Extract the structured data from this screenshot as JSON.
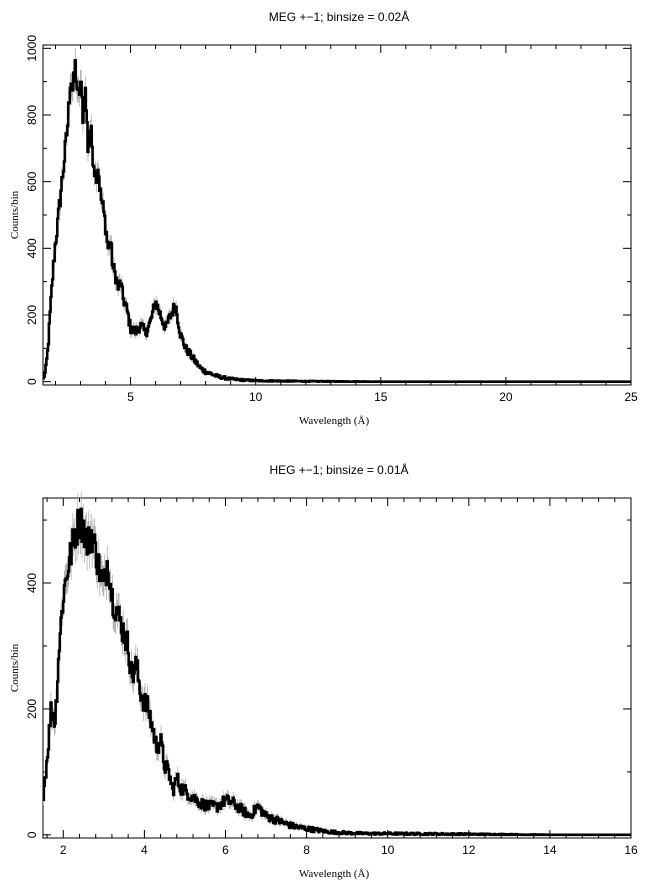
{
  "chart_data": [
    {
      "type": "line",
      "title": "MEG +−1; binsize = 0.02Å",
      "xlabel": "Wavelength (Å)",
      "ylabel": "Counts/bin",
      "xlim": [
        1.5,
        25
      ],
      "ylim": [
        -10,
        1010
      ],
      "xticks": [
        5,
        10,
        15,
        20,
        25
      ],
      "yticks": [
        0,
        200,
        400,
        600,
        800,
        1000
      ],
      "grid": false,
      "series": [
        {
          "x": [
            1.5,
            1.6,
            1.7,
            1.8,
            1.9,
            2.0,
            2.1,
            2.2,
            2.3,
            2.4,
            2.5,
            2.6,
            2.7,
            2.8,
            2.9,
            3.0,
            3.1,
            3.2,
            3.3,
            3.4,
            3.5,
            3.6,
            3.7,
            3.8,
            3.9,
            4.0,
            4.1,
            4.2,
            4.3,
            4.4,
            4.5,
            4.6,
            4.7,
            4.8,
            4.9,
            5.0,
            5.2,
            5.4,
            5.6,
            5.8,
            6.0,
            6.2,
            6.4,
            6.6,
            6.8,
            7.0,
            7.2,
            7.4,
            7.6,
            7.8,
            8.0,
            8.5,
            9.0,
            9.5,
            10.0,
            11.0,
            12.0,
            15.0,
            20.0,
            25.0
          ],
          "values": [
            5,
            30,
            100,
            220,
            330,
            420,
            480,
            560,
            630,
            700,
            780,
            920,
            870,
            950,
            840,
            900,
            800,
            870,
            700,
            760,
            680,
            620,
            650,
            560,
            520,
            470,
            400,
            420,
            340,
            320,
            280,
            300,
            250,
            230,
            200,
            160,
            150,
            170,
            145,
            180,
            240,
            200,
            160,
            200,
            230,
            140,
            100,
            80,
            60,
            40,
            30,
            15,
            8,
            5,
            3,
            2,
            1,
            0,
            0,
            0
          ]
        }
      ]
    },
    {
      "type": "line",
      "title": "HEG +−1; binsize = 0.01Å",
      "xlabel": "Wavelength (Å)",
      "ylabel": "Counts/bin",
      "xlim": [
        1.5,
        16
      ],
      "ylim": [
        -5,
        535
      ],
      "xticks": [
        2,
        4,
        6,
        8,
        10,
        12,
        14,
        16
      ],
      "yticks": [
        0,
        200,
        400
      ],
      "grid": false,
      "series": [
        {
          "x": [
            1.5,
            1.6,
            1.7,
            1.8,
            1.9,
            2.0,
            2.1,
            2.2,
            2.3,
            2.4,
            2.5,
            2.6,
            2.7,
            2.8,
            2.9,
            3.0,
            3.1,
            3.2,
            3.3,
            3.4,
            3.5,
            3.6,
            3.7,
            3.8,
            3.9,
            4.0,
            4.1,
            4.2,
            4.3,
            4.4,
            4.5,
            4.6,
            4.7,
            4.8,
            4.9,
            5.0,
            5.2,
            5.4,
            5.6,
            5.8,
            6.0,
            6.2,
            6.4,
            6.6,
            6.8,
            7.0,
            7.2,
            7.4,
            7.6,
            7.8,
            8.0,
            8.5,
            9.0,
            9.5,
            10.0,
            12.0,
            14.0,
            16.0
          ],
          "values": [
            60,
            120,
            200,
            180,
            300,
            380,
            420,
            450,
            480,
            500,
            490,
            460,
            480,
            450,
            420,
            390,
            440,
            380,
            360,
            340,
            320,
            300,
            250,
            270,
            230,
            210,
            200,
            170,
            140,
            150,
            110,
            100,
            70,
            90,
            75,
            70,
            60,
            50,
            45,
            45,
            55,
            50,
            40,
            30,
            45,
            30,
            25,
            20,
            15,
            12,
            10,
            5,
            3,
            2,
            2,
            1,
            0,
            0
          ]
        }
      ]
    }
  ]
}
